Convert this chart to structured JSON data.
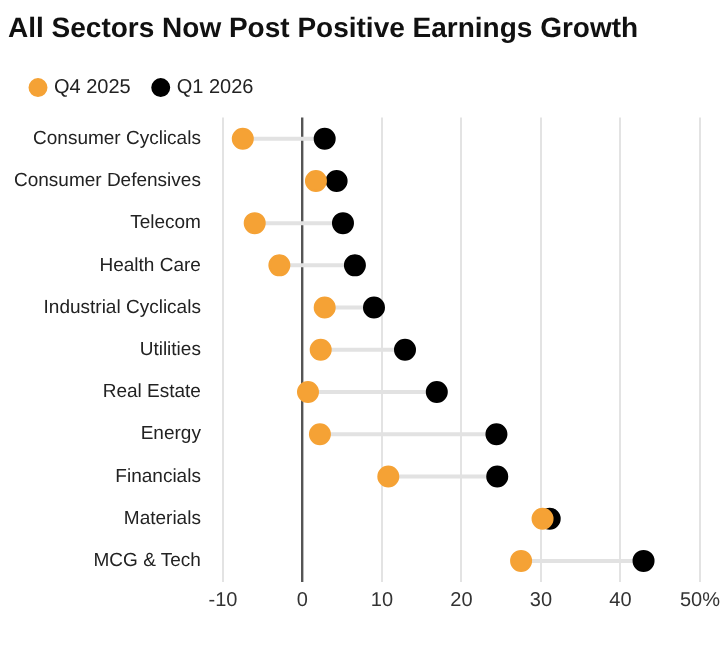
{
  "chart_data": {
    "type": "scatter",
    "orientation": "horizontal",
    "title": "All Sectors Now Post Positive Earnings Growth",
    "categories": [
      "Consumer Cyclicals",
      "Consumer Defensives",
      "Telecom",
      "Health Care",
      "Industrial Cyclicals",
      "Utilities",
      "Real Estate",
      "Energy",
      "Financials",
      "Materials",
      "MCG & Tech"
    ],
    "series": [
      {
        "name": "Q4 2025",
        "color": "#f5a235",
        "values": [
          -7.5,
          1.7,
          -6.0,
          -2.9,
          2.8,
          2.3,
          0.7,
          2.2,
          10.8,
          30.2,
          27.5
        ]
      },
      {
        "name": "Q1 2026",
        "color": "#000000",
        "values": [
          2.8,
          4.3,
          5.1,
          6.6,
          9.0,
          12.9,
          16.9,
          24.4,
          24.5,
          31.1,
          42.9
        ]
      }
    ],
    "xlim": [
      -10,
      50
    ],
    "xticks": [
      -10,
      0,
      10,
      20,
      30,
      40,
      {
        "value": 50,
        "label": "50%"
      }
    ],
    "grid": "x",
    "legend": "top left",
    "marker": "circle"
  }
}
